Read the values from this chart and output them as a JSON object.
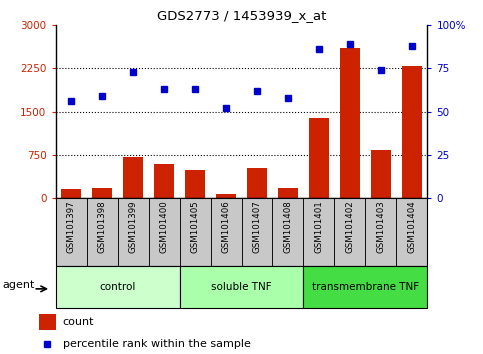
{
  "title": "GDS2773 / 1453939_x_at",
  "samples": [
    "GSM101397",
    "GSM101398",
    "GSM101399",
    "GSM101400",
    "GSM101405",
    "GSM101406",
    "GSM101407",
    "GSM101408",
    "GSM101401",
    "GSM101402",
    "GSM101403",
    "GSM101404"
  ],
  "counts": [
    155,
    185,
    710,
    600,
    490,
    65,
    530,
    175,
    1380,
    2600,
    830,
    2280
  ],
  "percentiles": [
    56,
    59,
    73,
    63,
    63,
    52,
    62,
    58,
    86,
    89,
    74,
    88
  ],
  "groups": [
    {
      "label": "control",
      "start": 0,
      "end": 3,
      "color": "#ccffcc"
    },
    {
      "label": "soluble TNF",
      "start": 4,
      "end": 7,
      "color": "#aaffaa"
    },
    {
      "label": "transmembrane TNF",
      "start": 8,
      "end": 11,
      "color": "#44dd44"
    }
  ],
  "ylim_left": [
    0,
    3000
  ],
  "ylim_right": [
    0,
    100
  ],
  "yticks_left": [
    0,
    750,
    1500,
    2250,
    3000
  ],
  "yticks_right": [
    0,
    25,
    50,
    75,
    100
  ],
  "bar_color": "#cc2200",
  "dot_color": "#0000cc",
  "left_tick_color": "#cc2200",
  "right_tick_color": "#0000cc",
  "plot_bg_color": "#ffffff",
  "sample_box_color": "#c8c8c8",
  "group1_color": "#ccffcc",
  "group2_color": "#aaffaa",
  "group3_color": "#44dd44"
}
